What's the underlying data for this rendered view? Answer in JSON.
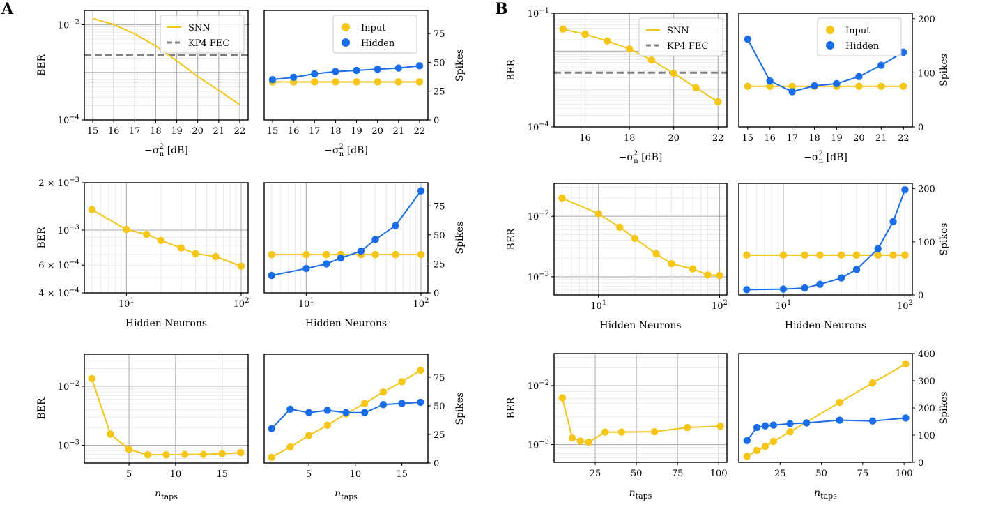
{
  "panel_labels": [
    "A",
    "B"
  ],
  "colors": {
    "snn": "#F5C518",
    "input": "#F5C518",
    "hidden": "#1A6DE8",
    "fec": "#808080",
    "grid_major": "#b0b0b0",
    "grid_minor": "#e2e2e2"
  },
  "legend": {
    "snn": "SNN",
    "fec": "KP4 FEC",
    "input": "Input",
    "hidden": "Hidden"
  },
  "chart_data": [
    {
      "id": "A-ber-noise",
      "type": "line",
      "panel": "A",
      "xscale": "linear",
      "yscale": "log",
      "xlim": [
        14.6,
        22.4
      ],
      "ylim": [
        0.0001,
        0.02
      ],
      "xticks": [
        15,
        16,
        17,
        18,
        19,
        20,
        21,
        22
      ],
      "xticklabels": [
        "15",
        "16",
        "17",
        "18",
        "19",
        "20",
        "21",
        "22"
      ],
      "yticks": [
        0.01,
        0.0001
      ],
      "yticklabels": [
        {
          "base": "10",
          "exp": "−2"
        },
        {
          "base": "10",
          "exp": "−4"
        }
      ],
      "xlabel": "−σ",
      "xlabel_sup": "2",
      "xlabel_sub": "n",
      "xlabel_unit": "[dB]",
      "ylabel": "BER",
      "fec_line": 0.0023,
      "legend": [
        "snn",
        "fec"
      ],
      "legend_pos": "top-right",
      "series": [
        {
          "name": "SNN",
          "key": "snn",
          "marker": false,
          "x": [
            15,
            16,
            17,
            18,
            19,
            20,
            21,
            22
          ],
          "y": [
            0.0136,
            0.0101,
            0.0064,
            0.0036,
            0.00175,
            0.00082,
            0.00042,
            0.00021
          ]
        }
      ]
    },
    {
      "id": "A-spikes-noise",
      "type": "line",
      "panel": "A",
      "xscale": "linear",
      "yscale": "linear",
      "xlim": [
        14.6,
        22.4
      ],
      "ylim": [
        0,
        95
      ],
      "xticks": [
        15,
        16,
        17,
        18,
        19,
        20,
        21,
        22
      ],
      "xticklabels": [
        "15",
        "16",
        "17",
        "18",
        "19",
        "20",
        "21",
        "22"
      ],
      "yticks": [
        0,
        25,
        50,
        75
      ],
      "yticklabels": [
        "0",
        "25",
        "50",
        "75"
      ],
      "xlabel": "−σ",
      "xlabel_sup": "2",
      "xlabel_sub": "n",
      "xlabel_unit": "[dB]",
      "ylabel": "Spikes",
      "ylabel_side": "right",
      "legend": [
        "input",
        "hidden"
      ],
      "legend_pos": "top-right",
      "series": [
        {
          "name": "Input",
          "key": "input",
          "marker": true,
          "x": [
            15,
            16,
            17,
            18,
            19,
            20,
            21,
            22
          ],
          "y": [
            33,
            33,
            33,
            33,
            33,
            33,
            33,
            33
          ]
        },
        {
          "name": "Hidden",
          "key": "hidden",
          "marker": true,
          "x": [
            15,
            16,
            17,
            18,
            19,
            20,
            21,
            22
          ],
          "y": [
            35,
            37,
            40,
            42,
            43,
            44,
            45,
            47
          ]
        }
      ]
    },
    {
      "id": "A-ber-neurons",
      "type": "line",
      "panel": "A",
      "xscale": "log",
      "yscale": "log",
      "xlim": [
        4.3,
        115
      ],
      "ylim": [
        0.0004,
        0.002
      ],
      "xticks": [
        10,
        100
      ],
      "xticklabels": [
        {
          "base": "10",
          "exp": "1"
        },
        {
          "base": "10",
          "exp": "2"
        }
      ],
      "yticks": [
        0.002,
        0.001,
        0.0006,
        0.0004
      ],
      "yticklabels": [
        {
          "pre": "2 × ",
          "base": "10",
          "exp": "−3"
        },
        {
          "base": "10",
          "exp": "−3"
        },
        {
          "pre": "6 × ",
          "base": "10",
          "exp": "−4"
        },
        {
          "pre": "4 × ",
          "base": "10",
          "exp": "−4"
        }
      ],
      "xlabel": "Hidden Neurons",
      "ylabel": "BER",
      "series": [
        {
          "name": "SNN",
          "key": "snn",
          "marker": true,
          "x": [
            5,
            10,
            15,
            20,
            30,
            40,
            60,
            100
          ],
          "y": [
            0.00135,
            0.00101,
            0.00094,
            0.00086,
            0.00077,
            0.00071,
            0.00068,
            0.00059
          ]
        }
      ]
    },
    {
      "id": "A-spikes-neurons",
      "type": "line",
      "panel": "A",
      "xscale": "log",
      "yscale": "linear",
      "xlim": [
        4.3,
        115
      ],
      "ylim": [
        0,
        95
      ],
      "xticks": [
        10,
        100
      ],
      "xticklabels": [
        {
          "base": "10",
          "exp": "1"
        },
        {
          "base": "10",
          "exp": "2"
        }
      ],
      "yticks": [
        0,
        25,
        50,
        75
      ],
      "yticklabels": [
        "0",
        "25",
        "50",
        "75"
      ],
      "xlabel": "Hidden Neurons",
      "ylabel": "Spikes",
      "ylabel_side": "right",
      "series": [
        {
          "name": "Input",
          "key": "input",
          "marker": true,
          "x": [
            5,
            10,
            15,
            20,
            30,
            40,
            60,
            100
          ],
          "y": [
            33,
            33,
            33,
            33,
            33,
            33,
            33,
            33
          ]
        },
        {
          "name": "Hidden",
          "key": "hidden",
          "marker": true,
          "x": [
            5,
            10,
            15,
            20,
            30,
            40,
            60,
            100
          ],
          "y": [
            15,
            21,
            25,
            30,
            36,
            46,
            58,
            88
          ]
        }
      ]
    },
    {
      "id": "A-ber-taps",
      "type": "line",
      "panel": "A",
      "xscale": "linear",
      "yscale": "log",
      "xlim": [
        0.2,
        17.8
      ],
      "ylim": [
        0.0005,
        0.035
      ],
      "xticks": [
        5,
        10,
        15
      ],
      "xticklabels": [
        "5",
        "10",
        "15"
      ],
      "yticks": [
        0.01,
        0.001
      ],
      "yticklabels": [
        {
          "base": "10",
          "exp": "−2"
        },
        {
          "base": "10",
          "exp": "−3"
        }
      ],
      "xlabel": "n",
      "xlabel_sub": "taps",
      "ylabel": "BER",
      "series": [
        {
          "name": "SNN",
          "key": "snn",
          "marker": true,
          "x": [
            1,
            3,
            5,
            7,
            9,
            11,
            13,
            15,
            17
          ],
          "y": [
            0.0135,
            0.00155,
            0.00085,
            0.00069,
            0.00069,
            0.0007,
            0.0007,
            0.00072,
            0.00075
          ]
        }
      ]
    },
    {
      "id": "A-spikes-taps",
      "type": "line",
      "panel": "A",
      "xscale": "linear",
      "yscale": "linear",
      "xlim": [
        0.2,
        17.8
      ],
      "ylim": [
        0,
        95
      ],
      "xticks": [
        5,
        10,
        15
      ],
      "xticklabels": [
        "5",
        "10",
        "15"
      ],
      "yticks": [
        0,
        25,
        50,
        75
      ],
      "yticklabels": [
        "0",
        "25",
        "50",
        "75"
      ],
      "xlabel": "n",
      "xlabel_sub": "taps",
      "ylabel": "Spikes",
      "ylabel_side": "right",
      "series": [
        {
          "name": "Input",
          "key": "input",
          "marker": true,
          "x": [
            1,
            3,
            5,
            7,
            9,
            11,
            13,
            15,
            17
          ],
          "y": [
            5,
            14,
            24,
            33,
            43,
            52,
            62,
            71,
            81
          ]
        },
        {
          "name": "Hidden",
          "key": "hidden",
          "marker": true,
          "x": [
            1,
            3,
            5,
            7,
            9,
            11,
            13,
            15,
            17
          ],
          "y": [
            30,
            47,
            44,
            46,
            44,
            44,
            51,
            52,
            53
          ]
        }
      ]
    },
    {
      "id": "B-ber-noise",
      "type": "line",
      "panel": "B",
      "xscale": "linear",
      "yscale": "log",
      "xlim": [
        14.6,
        22.4
      ],
      "ylim": [
        0.0001,
        0.1
      ],
      "xticks": [
        16,
        18,
        20,
        22
      ],
      "xticklabels": [
        "16",
        "18",
        "20",
        "22"
      ],
      "yticks": [
        0.1,
        0.0001
      ],
      "yticklabels": [
        {
          "base": "10",
          "exp": "−1"
        },
        {
          "base": "10",
          "exp": "−4"
        }
      ],
      "xlabel": "−σ",
      "xlabel_sup": "2",
      "xlabel_sub": "n",
      "xlabel_unit": "[dB]",
      "ylabel": "BER",
      "fec_line": 0.0027,
      "legend": [
        "snn",
        "fec"
      ],
      "legend_pos": "top-right",
      "series": [
        {
          "name": "SNN",
          "key": "snn",
          "marker": true,
          "x": [
            15,
            16,
            17,
            18,
            19,
            20,
            21,
            22
          ],
          "y": [
            0.038,
            0.028,
            0.0185,
            0.0115,
            0.0058,
            0.0026,
            0.00108,
            0.00046
          ]
        }
      ]
    },
    {
      "id": "B-spikes-noise",
      "type": "line",
      "panel": "B",
      "xscale": "linear",
      "yscale": "linear",
      "xlim": [
        14.6,
        22.4
      ],
      "ylim": [
        0,
        210
      ],
      "xticks": [
        15,
        16,
        17,
        18,
        19,
        20,
        21,
        22
      ],
      "xticklabels": [
        "15",
        "16",
        "17",
        "18",
        "19",
        "20",
        "21",
        "22"
      ],
      "yticks": [
        0,
        100,
        200
      ],
      "yticklabels": [
        "0",
        "100",
        "200"
      ],
      "xlabel": "−σ",
      "xlabel_sup": "2",
      "xlabel_sub": "n",
      "xlabel_unit": "[dB]",
      "ylabel": "Spikes",
      "ylabel_side": "right",
      "legend": [
        "input",
        "hidden"
      ],
      "legend_pos": "top-right",
      "series": [
        {
          "name": "Input",
          "key": "input",
          "marker": true,
          "x": [
            15,
            16,
            17,
            18,
            19,
            20,
            21,
            22
          ],
          "y": [
            75,
            75,
            75,
            75,
            75,
            75,
            75,
            75
          ]
        },
        {
          "name": "Hidden",
          "key": "hidden",
          "marker": true,
          "x": [
            15,
            16,
            17,
            18,
            19,
            20,
            21,
            22
          ],
          "y": [
            162,
            85,
            65,
            76,
            80,
            93,
            114,
            138
          ]
        }
      ]
    },
    {
      "id": "B-ber-neurons",
      "type": "line",
      "panel": "B",
      "xscale": "log",
      "yscale": "log",
      "xlim": [
        4.3,
        115
      ],
      "ylim": [
        0.0005,
        0.035
      ],
      "xticks": [
        10,
        100
      ],
      "xticklabels": [
        {
          "base": "10",
          "exp": "1"
        },
        {
          "base": "10",
          "exp": "2"
        }
      ],
      "yticks": [
        0.01,
        0.001
      ],
      "yticklabels": [
        {
          "base": "10",
          "exp": "−2"
        },
        {
          "base": "10",
          "exp": "−3"
        }
      ],
      "xlabel": "Hidden Neurons",
      "ylabel": "BER",
      "series": [
        {
          "name": "SNN",
          "key": "snn",
          "marker": true,
          "x": [
            5,
            10,
            15,
            20,
            30,
            40,
            60,
            80,
            100
          ],
          "y": [
            0.02,
            0.011,
            0.0066,
            0.0043,
            0.0024,
            0.00165,
            0.00135,
            0.00107,
            0.00105
          ]
        }
      ]
    },
    {
      "id": "B-spikes-neurons",
      "type": "line",
      "panel": "B",
      "xscale": "log",
      "yscale": "linear",
      "xlim": [
        4.3,
        115
      ],
      "ylim": [
        0,
        210
      ],
      "xticks": [
        10,
        100
      ],
      "xticklabels": [
        {
          "base": "10",
          "exp": "1"
        },
        {
          "base": "10",
          "exp": "2"
        }
      ],
      "yticks": [
        0,
        100,
        200
      ],
      "yticklabels": [
        "0",
        "100",
        "200"
      ],
      "xlabel": "Hidden Neurons",
      "ylabel": "Spikes",
      "ylabel_side": "right",
      "series": [
        {
          "name": "Input",
          "key": "input",
          "marker": true,
          "x": [
            5,
            10,
            15,
            20,
            30,
            40,
            60,
            80,
            100
          ],
          "y": [
            75,
            75,
            75,
            75,
            75,
            75,
            75,
            75,
            75
          ]
        },
        {
          "name": "Hidden",
          "key": "hidden",
          "marker": true,
          "x": [
            5,
            10,
            15,
            20,
            30,
            40,
            60,
            80,
            100
          ],
          "y": [
            10,
            11,
            13,
            20,
            32,
            48,
            87,
            138,
            198
          ]
        }
      ]
    },
    {
      "id": "B-ber-taps",
      "type": "line",
      "panel": "B",
      "xscale": "linear",
      "yscale": "log",
      "xlim": [
        0,
        105
      ],
      "ylim": [
        0.0005,
        0.035
      ],
      "xticks": [
        25,
        50,
        75,
        100
      ],
      "xticklabels": [
        "25",
        "50",
        "75",
        "100"
      ],
      "yticks": [
        0.01,
        0.001
      ],
      "yticklabels": [
        {
          "base": "10",
          "exp": "−2"
        },
        {
          "base": "10",
          "exp": "−3"
        }
      ],
      "xlabel": "n",
      "xlabel_sub": "taps",
      "ylabel": "BER",
      "series": [
        {
          "name": "SNN",
          "key": "snn",
          "marker": true,
          "x": [
            5,
            11,
            16,
            21,
            31,
            41,
            61,
            81,
            101
          ],
          "y": [
            0.0062,
            0.0013,
            0.00115,
            0.0011,
            0.00163,
            0.00163,
            0.00165,
            0.00195,
            0.00205
          ]
        }
      ]
    },
    {
      "id": "B-spikes-taps",
      "type": "line",
      "panel": "B",
      "xscale": "linear",
      "yscale": "linear",
      "xlim": [
        0,
        105
      ],
      "ylim": [
        0,
        400
      ],
      "xticks": [
        25,
        50,
        75,
        100
      ],
      "xticklabels": [
        "25",
        "50",
        "75",
        "100"
      ],
      "yticks": [
        0,
        100,
        200,
        300,
        400
      ],
      "yticklabels": [
        "0",
        "100",
        "200",
        "300",
        "400"
      ],
      "xlabel": "n",
      "xlabel_sub": "taps",
      "ylabel": "Spikes",
      "ylabel_side": "right",
      "series": [
        {
          "name": "Input",
          "key": "input",
          "marker": true,
          "x": [
            5,
            11,
            16,
            21,
            31,
            61,
            81,
            101
          ],
          "y": [
            22,
            44,
            58,
            77,
            112,
            220,
            292,
            362
          ]
        },
        {
          "name": "Hidden",
          "key": "hidden",
          "marker": true,
          "x": [
            5,
            11,
            16,
            21,
            31,
            41,
            61,
            81,
            101
          ],
          "y": [
            80,
            128,
            134,
            137,
            142,
            145,
            155,
            152,
            163
          ]
        }
      ]
    }
  ]
}
